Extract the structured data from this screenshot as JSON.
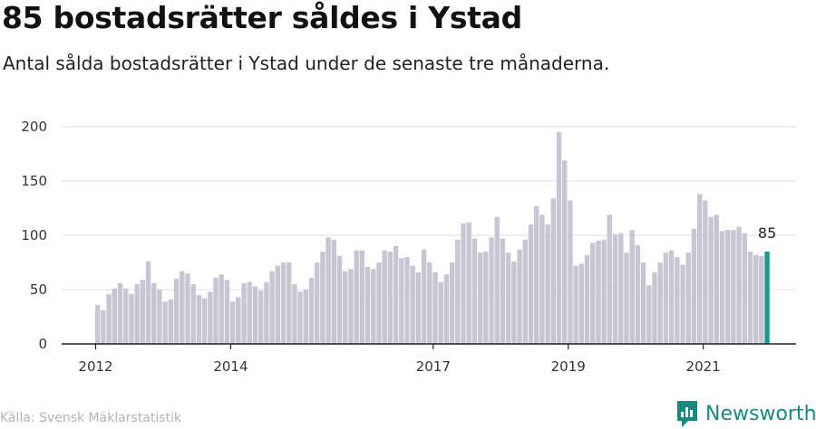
{
  "header": {
    "title": "85 bostadsrätter såldes i Ystad",
    "subtitle": "Antal sålda bostadsrätter i Ystad under de senaste tre månaderna."
  },
  "footer": {
    "source": "Källa: Svensk Mäklarstatistik",
    "brand": "Newsworthy",
    "brand_icon": "newsworthy-logo-icon"
  },
  "colors": {
    "bar": "#c8c6d3",
    "highlight": "#1a9b8f",
    "grid": "#dddddd",
    "axis": "#222222",
    "brand": "#17897e"
  },
  "chart_data": {
    "type": "bar",
    "x_start": "2012-01",
    "x_step": "month",
    "x_ticks": [
      "2012",
      "2014",
      "2017",
      "2019",
      "2021"
    ],
    "ylim": [
      0,
      200
    ],
    "y_ticks": [
      0,
      50,
      100,
      150,
      200
    ],
    "grid": true,
    "values": [
      36,
      31,
      46,
      51,
      56,
      51,
      46,
      55,
      59,
      76,
      56,
      50,
      39,
      41,
      60,
      67,
      65,
      55,
      45,
      42,
      48,
      61,
      64,
      59,
      39,
      43,
      56,
      57,
      53,
      49,
      57,
      67,
      72,
      75,
      75,
      55,
      48,
      50,
      61,
      75,
      85,
      98,
      96,
      81,
      67,
      69,
      86,
      86,
      71,
      69,
      75,
      86,
      85,
      90,
      79,
      80,
      72,
      66,
      87,
      75,
      66,
      57,
      64,
      75,
      96,
      111,
      112,
      97,
      84,
      85,
      98,
      117,
      97,
      84,
      76,
      87,
      96,
      110,
      127,
      119,
      110,
      134,
      195,
      169,
      132,
      72,
      74,
      82,
      93,
      95,
      96,
      119,
      101,
      102,
      84,
      105,
      91,
      75,
      54,
      66,
      75,
      84,
      86,
      80,
      73,
      84,
      106,
      138,
      132,
      117,
      119,
      104,
      105,
      105,
      108,
      102,
      85,
      82,
      81,
      85
    ],
    "highlight_index": 119,
    "highlight_label": "85"
  }
}
